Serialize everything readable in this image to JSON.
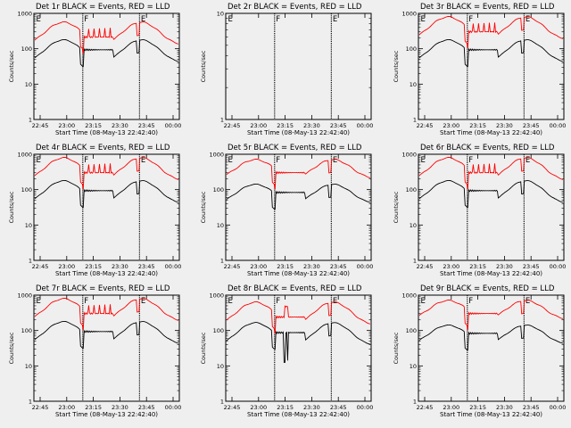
{
  "chart_data": [
    {
      "type": "line",
      "title": "Det 1r BLACK = Events, RED = LLD",
      "xlabel": "Start Time (08-May-13 22:42:40)",
      "ylabel": "Counts/sec",
      "xticks": [
        "22:45",
        "23:00",
        "23:15",
        "23:30",
        "23:45",
        "00:00"
      ],
      "yticks": [
        "1",
        "10",
        "100",
        "1000"
      ],
      "markers": [
        "E",
        "F",
        "E"
      ],
      "has_data": true,
      "series": [
        {
          "name": "Events",
          "color": "#000000",
          "profile": "low"
        },
        {
          "name": "LLD",
          "color": "#ff0000",
          "profile": "low"
        }
      ]
    },
    {
      "type": "line",
      "title": "Det 2r BLACK = Events, RED = LLD",
      "xlabel": "Start Time (08-May-13 22:42:40)",
      "ylabel": "Counts/sec",
      "xticks": [
        "22:45",
        "23:00",
        "23:15",
        "23:30",
        "23:45",
        "00:00"
      ],
      "yticks": [
        "1",
        "10"
      ],
      "markers": [
        "E",
        "F",
        "E"
      ],
      "has_data": false,
      "series": []
    },
    {
      "type": "line",
      "title": "Det 3r BLACK = Events, RED = LLD",
      "xlabel": "Start Time (08-May-13 22:42:40)",
      "ylabel": "Counts/sec",
      "xticks": [
        "22:45",
        "23:00",
        "23:15",
        "23:30",
        "23:45",
        "00:00"
      ],
      "yticks": [
        "1",
        "10",
        "100",
        "1000"
      ],
      "markers": [
        "E",
        "F",
        "E"
      ],
      "has_data": true,
      "series": [
        {
          "name": "Events",
          "color": "#000000",
          "profile": "normal"
        },
        {
          "name": "LLD",
          "color": "#ff0000",
          "profile": "normal"
        }
      ]
    },
    {
      "type": "line",
      "title": "Det 4r BLACK = Events, RED = LLD",
      "xlabel": "Start Time (08-May-13 22:42:40)",
      "ylabel": "Counts/sec",
      "xticks": [
        "22:45",
        "23:00",
        "23:15",
        "23:30",
        "23:45",
        "00:00"
      ],
      "yticks": [
        "1",
        "10",
        "100",
        "1000"
      ],
      "markers": [
        "E",
        "F",
        "E"
      ],
      "has_data": true,
      "series": [
        {
          "name": "Events",
          "color": "#000000",
          "profile": "normal"
        },
        {
          "name": "LLD",
          "color": "#ff0000",
          "profile": "normal"
        }
      ]
    },
    {
      "type": "line",
      "title": "Det 5r BLACK = Events, RED = LLD",
      "xlabel": "Start Time (08-May-13 22:42:40)",
      "ylabel": "Counts/sec",
      "xticks": [
        "22:45",
        "23:00",
        "23:15",
        "23:30",
        "23:45",
        "00:00"
      ],
      "yticks": [
        "1",
        "10",
        "100",
        "1000"
      ],
      "markers": [
        "E",
        "F",
        "E"
      ],
      "has_data": true,
      "series": [
        {
          "name": "Events",
          "color": "#000000",
          "profile": "quiet"
        },
        {
          "name": "LLD",
          "color": "#ff0000",
          "profile": "quiet"
        }
      ]
    },
    {
      "type": "line",
      "title": "Det 6r BLACK = Events, RED = LLD",
      "xlabel": "Start Time (08-May-13 22:42:40)",
      "ylabel": "Counts/sec",
      "xticks": [
        "22:45",
        "23:00",
        "23:15",
        "23:30",
        "23:45",
        "00:00"
      ],
      "yticks": [
        "1",
        "10",
        "100",
        "1000"
      ],
      "markers": [
        "E",
        "F",
        "E"
      ],
      "has_data": true,
      "series": [
        {
          "name": "Events",
          "color": "#000000",
          "profile": "normal"
        },
        {
          "name": "LLD",
          "color": "#ff0000",
          "profile": "normal"
        }
      ]
    },
    {
      "type": "line",
      "title": "Det 7r BLACK = Events, RED = LLD",
      "xlabel": "Start Time (08-May-13 22:42:40)",
      "ylabel": "Counts/sec",
      "xticks": [
        "22:45",
        "23:00",
        "23:15",
        "23:30",
        "23:45",
        "00:00"
      ],
      "yticks": [
        "1",
        "10",
        "100",
        "1000"
      ],
      "markers": [
        "E",
        "F",
        "E"
      ],
      "has_data": true,
      "series": [
        {
          "name": "Events",
          "color": "#000000",
          "profile": "normal"
        },
        {
          "name": "LLD",
          "color": "#ff0000",
          "profile": "normal"
        }
      ]
    },
    {
      "type": "line",
      "title": "Det 8r BLACK = Events, RED = LLD",
      "xlabel": "Start Time (08-May-13 22:42:40)",
      "ylabel": "Counts/sec",
      "xticks": [
        "22:45",
        "23:00",
        "23:15",
        "23:30",
        "23:45",
        "00:00"
      ],
      "yticks": [
        "1",
        "10",
        "100",
        "1000"
      ],
      "markers": [
        "E",
        "F",
        "E"
      ],
      "has_data": true,
      "series": [
        {
          "name": "Events",
          "color": "#000000",
          "profile": "det8"
        },
        {
          "name": "LLD",
          "color": "#ff0000",
          "profile": "det8"
        }
      ]
    },
    {
      "type": "line",
      "title": "Det 9r BLACK = Events, RED = LLD",
      "xlabel": "Start Time (08-May-13 22:42:40)",
      "ylabel": "Counts/sec",
      "xticks": [
        "22:45",
        "23:00",
        "23:15",
        "23:30",
        "23:45",
        "00:00"
      ],
      "yticks": [
        "1",
        "10",
        "100",
        "1000"
      ],
      "markers": [
        "E",
        "F",
        "E"
      ],
      "has_data": true,
      "series": [
        {
          "name": "Events",
          "color": "#000000",
          "profile": "quiet"
        },
        {
          "name": "LLD",
          "color": "#ff0000",
          "profile": "quiet"
        }
      ]
    }
  ]
}
